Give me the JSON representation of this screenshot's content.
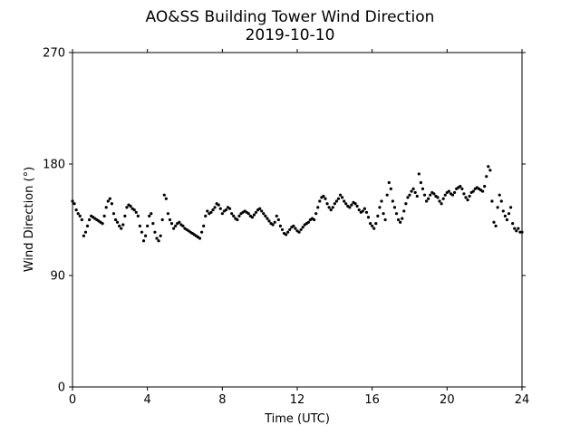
{
  "chart_data": {
    "type": "scatter",
    "title": "AO&SS Building Tower Wind Direction",
    "subtitle": "2019-10-10",
    "xlabel": "Time (UTC)",
    "ylabel": "Wind Direction (°)",
    "xlim": [
      0,
      24
    ],
    "ylim": [
      0,
      270
    ],
    "xticks": [
      0,
      4,
      8,
      12,
      16,
      20,
      24
    ],
    "xtick_labels": [
      "0",
      "4",
      "8",
      "12",
      "16",
      "20",
      "24"
    ],
    "yticks": [
      0,
      90,
      180,
      270
    ],
    "ytick_labels": [
      "0",
      "90",
      "180",
      "270"
    ],
    "grid": false,
    "legend": "none",
    "marker_color": "#000000",
    "series": [
      {
        "points": [
          [
            0.0,
            150
          ],
          [
            0.1,
            148
          ],
          [
            0.2,
            143
          ],
          [
            0.3,
            140
          ],
          [
            0.4,
            138
          ],
          [
            0.5,
            135
          ],
          [
            0.6,
            122
          ],
          [
            0.7,
            125
          ],
          [
            0.8,
            130
          ],
          [
            0.9,
            135
          ],
          [
            1.0,
            138
          ],
          [
            1.1,
            137
          ],
          [
            1.2,
            136
          ],
          [
            1.3,
            135
          ],
          [
            1.4,
            134
          ],
          [
            1.5,
            133
          ],
          [
            1.6,
            132
          ],
          [
            1.7,
            138
          ],
          [
            1.8,
            145
          ],
          [
            1.9,
            150
          ],
          [
            2.0,
            152
          ],
          [
            2.1,
            148
          ],
          [
            2.2,
            140
          ],
          [
            2.3,
            135
          ],
          [
            2.4,
            133
          ],
          [
            2.5,
            130
          ],
          [
            2.6,
            128
          ],
          [
            2.7,
            131
          ],
          [
            2.8,
            138
          ],
          [
            2.9,
            145
          ],
          [
            3.0,
            147
          ],
          [
            3.1,
            146
          ],
          [
            3.2,
            144
          ],
          [
            3.3,
            143
          ],
          [
            3.4,
            141
          ],
          [
            3.5,
            138
          ],
          [
            3.6,
            130
          ],
          [
            3.7,
            125
          ],
          [
            3.8,
            118
          ],
          [
            3.9,
            122
          ],
          [
            4.0,
            130
          ],
          [
            4.1,
            138
          ],
          [
            4.2,
            140
          ],
          [
            4.3,
            132
          ],
          [
            4.4,
            125
          ],
          [
            4.5,
            120
          ],
          [
            4.6,
            118
          ],
          [
            4.7,
            122
          ],
          [
            4.8,
            135
          ],
          [
            4.9,
            155
          ],
          [
            5.0,
            152
          ],
          [
            5.1,
            140
          ],
          [
            5.2,
            135
          ],
          [
            5.3,
            132
          ],
          [
            5.4,
            128
          ],
          [
            5.5,
            130
          ],
          [
            5.6,
            132
          ],
          [
            5.7,
            133
          ],
          [
            5.8,
            131
          ],
          [
            5.9,
            130
          ],
          [
            6.0,
            128
          ],
          [
            6.1,
            127
          ],
          [
            6.2,
            126
          ],
          [
            6.3,
            125
          ],
          [
            6.4,
            124
          ],
          [
            6.5,
            123
          ],
          [
            6.6,
            122
          ],
          [
            6.7,
            121
          ],
          [
            6.8,
            120
          ],
          [
            6.9,
            125
          ],
          [
            7.0,
            130
          ],
          [
            7.1,
            138
          ],
          [
            7.2,
            142
          ],
          [
            7.3,
            140
          ],
          [
            7.4,
            141
          ],
          [
            7.5,
            143
          ],
          [
            7.6,
            145
          ],
          [
            7.7,
            148
          ],
          [
            7.8,
            147
          ],
          [
            7.9,
            144
          ],
          [
            8.0,
            140
          ],
          [
            8.1,
            142
          ],
          [
            8.2,
            143
          ],
          [
            8.3,
            145
          ],
          [
            8.4,
            144
          ],
          [
            8.5,
            140
          ],
          [
            8.6,
            138
          ],
          [
            8.7,
            136
          ],
          [
            8.8,
            135
          ],
          [
            8.9,
            138
          ],
          [
            9.0,
            140
          ],
          [
            9.1,
            141
          ],
          [
            9.2,
            142
          ],
          [
            9.3,
            141
          ],
          [
            9.4,
            140
          ],
          [
            9.5,
            138
          ],
          [
            9.6,
            137
          ],
          [
            9.7,
            139
          ],
          [
            9.8,
            141
          ],
          [
            9.9,
            143
          ],
          [
            10.0,
            144
          ],
          [
            10.1,
            142
          ],
          [
            10.2,
            140
          ],
          [
            10.3,
            138
          ],
          [
            10.4,
            136
          ],
          [
            10.5,
            134
          ],
          [
            10.6,
            132
          ],
          [
            10.7,
            131
          ],
          [
            10.8,
            133
          ],
          [
            10.9,
            138
          ],
          [
            11.0,
            135
          ],
          [
            11.1,
            130
          ],
          [
            11.2,
            127
          ],
          [
            11.3,
            124
          ],
          [
            11.4,
            123
          ],
          [
            11.5,
            125
          ],
          [
            11.6,
            127
          ],
          [
            11.7,
            129
          ],
          [
            11.8,
            130
          ],
          [
            11.9,
            128
          ],
          [
            12.0,
            126
          ],
          [
            12.1,
            125
          ],
          [
            12.2,
            127
          ],
          [
            12.3,
            129
          ],
          [
            12.4,
            131
          ],
          [
            12.5,
            132
          ],
          [
            12.6,
            133
          ],
          [
            12.7,
            135
          ],
          [
            12.8,
            136
          ],
          [
            12.9,
            135
          ],
          [
            13.0,
            140
          ],
          [
            13.1,
            145
          ],
          [
            13.2,
            150
          ],
          [
            13.3,
            153
          ],
          [
            13.4,
            154
          ],
          [
            13.5,
            152
          ],
          [
            13.6,
            148
          ],
          [
            13.7,
            145
          ],
          [
            13.8,
            143
          ],
          [
            13.9,
            145
          ],
          [
            14.0,
            148
          ],
          [
            14.1,
            150
          ],
          [
            14.2,
            152
          ],
          [
            14.3,
            155
          ],
          [
            14.4,
            153
          ],
          [
            14.5,
            150
          ],
          [
            14.6,
            148
          ],
          [
            14.7,
            146
          ],
          [
            14.8,
            145
          ],
          [
            14.9,
            147
          ],
          [
            15.0,
            149
          ],
          [
            15.1,
            148
          ],
          [
            15.2,
            146
          ],
          [
            15.3,
            143
          ],
          [
            15.4,
            141
          ],
          [
            15.5,
            142
          ],
          [
            15.6,
            144
          ],
          [
            15.7,
            141
          ],
          [
            15.8,
            137
          ],
          [
            15.9,
            132
          ],
          [
            16.0,
            130
          ],
          [
            16.1,
            128
          ],
          [
            16.2,
            132
          ],
          [
            16.3,
            138
          ],
          [
            16.4,
            145
          ],
          [
            16.5,
            150
          ],
          [
            16.6,
            140
          ],
          [
            16.7,
            135
          ],
          [
            16.8,
            155
          ],
          [
            16.9,
            165
          ],
          [
            17.0,
            160
          ],
          [
            17.1,
            150
          ],
          [
            17.2,
            145
          ],
          [
            17.3,
            140
          ],
          [
            17.4,
            135
          ],
          [
            17.5,
            133
          ],
          [
            17.6,
            136
          ],
          [
            17.7,
            142
          ],
          [
            17.8,
            148
          ],
          [
            17.9,
            153
          ],
          [
            18.0,
            155
          ],
          [
            18.1,
            158
          ],
          [
            18.2,
            160
          ],
          [
            18.3,
            157
          ],
          [
            18.4,
            154
          ],
          [
            18.5,
            172
          ],
          [
            18.6,
            165
          ],
          [
            18.7,
            160
          ],
          [
            18.8,
            155
          ],
          [
            18.9,
            150
          ],
          [
            19.0,
            152
          ],
          [
            19.1,
            155
          ],
          [
            19.2,
            157
          ],
          [
            19.3,
            156
          ],
          [
            19.4,
            154
          ],
          [
            19.5,
            153
          ],
          [
            19.6,
            150
          ],
          [
            19.7,
            148
          ],
          [
            19.8,
            152
          ],
          [
            19.9,
            155
          ],
          [
            20.0,
            157
          ],
          [
            20.1,
            158
          ],
          [
            20.2,
            156
          ],
          [
            20.3,
            155
          ],
          [
            20.4,
            157
          ],
          [
            20.5,
            160
          ],
          [
            20.6,
            161
          ],
          [
            20.7,
            162
          ],
          [
            20.8,
            160
          ],
          [
            20.9,
            156
          ],
          [
            21.0,
            153
          ],
          [
            21.1,
            151
          ],
          [
            21.2,
            154
          ],
          [
            21.3,
            157
          ],
          [
            21.4,
            158
          ],
          [
            21.5,
            160
          ],
          [
            21.6,
            161
          ],
          [
            21.7,
            160
          ],
          [
            21.8,
            159
          ],
          [
            21.9,
            158
          ],
          [
            22.0,
            162
          ],
          [
            22.1,
            170
          ],
          [
            22.2,
            178
          ],
          [
            22.3,
            175
          ],
          [
            22.4,
            150
          ],
          [
            22.5,
            133
          ],
          [
            22.6,
            130
          ],
          [
            22.7,
            145
          ],
          [
            22.8,
            155
          ],
          [
            22.9,
            150
          ],
          [
            23.0,
            142
          ],
          [
            23.1,
            138
          ],
          [
            23.2,
            135
          ],
          [
            23.3,
            140
          ],
          [
            23.4,
            145
          ],
          [
            23.5,
            132
          ],
          [
            23.6,
            128
          ],
          [
            23.7,
            126
          ],
          [
            23.8,
            128
          ],
          [
            23.9,
            125
          ],
          [
            24.0,
            125
          ]
        ]
      }
    ]
  }
}
